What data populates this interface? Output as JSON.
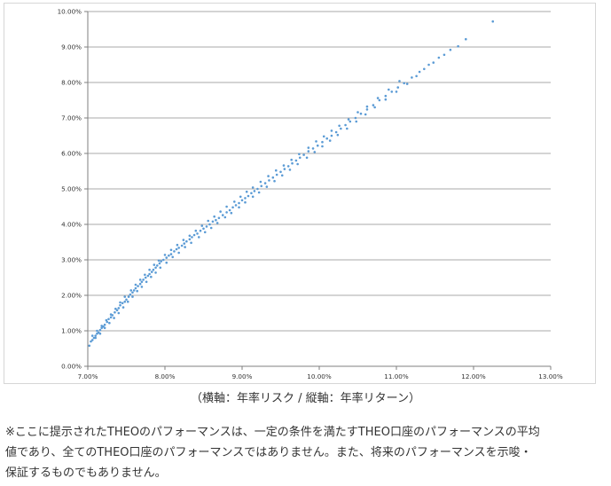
{
  "chart_data": {
    "type": "scatter",
    "x_tick_labels": [
      "7.00%",
      "8.00%",
      "9.00%",
      "10.00%",
      "11.00%",
      "12.00%",
      "13.00%"
    ],
    "y_tick_labels": [
      "0.00%",
      "1.00%",
      "2.00%",
      "3.00%",
      "4.00%",
      "5.00%",
      "6.00%",
      "7.00%",
      "8.00%",
      "9.00%",
      "10.00%"
    ],
    "xlim": [
      7,
      13
    ],
    "ylim": [
      0,
      10
    ],
    "x_unit": "%",
    "y_unit": "%",
    "grid": "horizontal",
    "point_color": "#5b9bd5",
    "points": [
      [
        7.02,
        0.58
      ],
      [
        7.04,
        0.7
      ],
      [
        7.06,
        0.74
      ],
      [
        7.08,
        0.8
      ],
      [
        7.1,
        0.86
      ],
      [
        7.12,
        0.92
      ],
      [
        7.14,
        0.95
      ],
      [
        7.16,
        1.02
      ],
      [
        7.18,
        1.08
      ],
      [
        7.2,
        1.12
      ],
      [
        7.22,
        1.17
      ],
      [
        7.25,
        1.25
      ],
      [
        7.27,
        1.33
      ],
      [
        7.3,
        1.38
      ],
      [
        7.32,
        1.44
      ],
      [
        7.35,
        1.52
      ],
      [
        7.38,
        1.58
      ],
      [
        7.4,
        1.64
      ],
      [
        7.42,
        1.72
      ],
      [
        7.45,
        1.78
      ],
      [
        7.48,
        1.82
      ],
      [
        7.5,
        1.88
      ],
      [
        7.53,
        1.96
      ],
      [
        7.55,
        2.02
      ],
      [
        7.58,
        2.08
      ],
      [
        7.6,
        2.14
      ],
      [
        7.62,
        2.2
      ],
      [
        7.65,
        2.26
      ],
      [
        7.68,
        2.32
      ],
      [
        7.7,
        2.38
      ],
      [
        7.72,
        2.44
      ],
      [
        7.75,
        2.5
      ],
      [
        7.78,
        2.55
      ],
      [
        7.8,
        2.6
      ],
      [
        7.83,
        2.66
      ],
      [
        7.85,
        2.72
      ],
      [
        7.88,
        2.78
      ],
      [
        7.9,
        2.84
      ],
      [
        7.93,
        2.9
      ],
      [
        7.95,
        2.96
      ],
      [
        7.98,
        3.0
      ],
      [
        8.02,
        3.06
      ],
      [
        8.05,
        3.12
      ],
      [
        8.08,
        3.16
      ],
      [
        8.12,
        3.24
      ],
      [
        8.15,
        3.3
      ],
      [
        8.18,
        3.34
      ],
      [
        8.22,
        3.4
      ],
      [
        8.25,
        3.46
      ],
      [
        8.28,
        3.52
      ],
      [
        8.32,
        3.58
      ],
      [
        8.35,
        3.64
      ],
      [
        8.38,
        3.7
      ],
      [
        8.42,
        3.74
      ],
      [
        8.46,
        3.82
      ],
      [
        8.5,
        3.88
      ],
      [
        8.54,
        3.94
      ],
      [
        8.58,
        4.0
      ],
      [
        8.62,
        4.08
      ],
      [
        8.66,
        4.12
      ],
      [
        8.7,
        4.18
      ],
      [
        8.75,
        4.26
      ],
      [
        8.8,
        4.34
      ],
      [
        8.84,
        4.4
      ],
      [
        8.88,
        4.48
      ],
      [
        8.92,
        4.54
      ],
      [
        8.96,
        4.6
      ],
      [
        9.0,
        4.68
      ],
      [
        9.04,
        4.74
      ],
      [
        9.08,
        4.8
      ],
      [
        9.12,
        4.88
      ],
      [
        9.16,
        4.94
      ],
      [
        9.2,
        5.0
      ],
      [
        9.25,
        5.08
      ],
      [
        9.3,
        5.16
      ],
      [
        9.35,
        5.24
      ],
      [
        9.4,
        5.32
      ],
      [
        9.45,
        5.4
      ],
      [
        9.5,
        5.48
      ],
      [
        9.55,
        5.56
      ],
      [
        9.6,
        5.64
      ],
      [
        9.65,
        5.72
      ],
      [
        9.7,
        5.8
      ],
      [
        9.75,
        5.88
      ],
      [
        9.8,
        5.96
      ],
      [
        9.86,
        6.06
      ],
      [
        9.92,
        6.14
      ],
      [
        9.98,
        6.22
      ],
      [
        10.04,
        6.32
      ],
      [
        10.1,
        6.42
      ],
      [
        10.16,
        6.5
      ],
      [
        10.22,
        6.6
      ],
      [
        10.28,
        6.7
      ],
      [
        10.34,
        6.8
      ],
      [
        10.4,
        6.9
      ],
      [
        10.47,
        7.0
      ],
      [
        10.54,
        7.12
      ],
      [
        10.62,
        7.24
      ],
      [
        10.7,
        7.36
      ],
      [
        10.78,
        7.5
      ],
      [
        10.86,
        7.62
      ],
      [
        10.94,
        7.74
      ],
      [
        11.02,
        7.86
      ],
      [
        11.1,
        7.98
      ],
      [
        11.2,
        8.14
      ],
      [
        11.3,
        8.3
      ],
      [
        11.42,
        8.5
      ],
      [
        11.55,
        8.7
      ],
      [
        11.7,
        8.92
      ],
      [
        11.9,
        9.22
      ],
      [
        12.25,
        9.72
      ],
      [
        7.06,
        0.86
      ],
      [
        7.12,
        1.0
      ],
      [
        7.18,
        1.14
      ],
      [
        7.24,
        1.3
      ],
      [
        7.3,
        1.46
      ],
      [
        7.36,
        1.62
      ],
      [
        7.42,
        1.8
      ],
      [
        7.48,
        1.96
      ],
      [
        7.56,
        2.14
      ],
      [
        7.62,
        2.3
      ],
      [
        7.68,
        2.44
      ],
      [
        7.74,
        2.58
      ],
      [
        7.8,
        2.72
      ],
      [
        7.86,
        2.86
      ],
      [
        7.92,
        2.98
      ],
      [
        8.0,
        3.14
      ],
      [
        8.08,
        3.28
      ],
      [
        8.16,
        3.42
      ],
      [
        8.24,
        3.56
      ],
      [
        8.32,
        3.68
      ],
      [
        8.4,
        3.82
      ],
      [
        8.48,
        3.96
      ],
      [
        8.56,
        4.1
      ],
      [
        8.64,
        4.22
      ],
      [
        8.72,
        4.36
      ],
      [
        8.8,
        4.5
      ],
      [
        8.9,
        4.64
      ],
      [
        8.98,
        4.78
      ],
      [
        9.06,
        4.92
      ],
      [
        9.14,
        5.04
      ],
      [
        9.24,
        5.2
      ],
      [
        9.34,
        5.36
      ],
      [
        9.44,
        5.52
      ],
      [
        9.54,
        5.66
      ],
      [
        9.64,
        5.82
      ],
      [
        9.74,
        5.98
      ],
      [
        9.86,
        6.16
      ],
      [
        9.96,
        6.34
      ],
      [
        10.06,
        6.48
      ],
      [
        10.16,
        6.64
      ],
      [
        10.26,
        6.78
      ],
      [
        10.38,
        6.96
      ],
      [
        10.5,
        7.16
      ],
      [
        10.62,
        7.32
      ],
      [
        10.76,
        7.56
      ],
      [
        10.9,
        7.8
      ],
      [
        11.04,
        8.04
      ],
      [
        7.1,
        0.8
      ],
      [
        7.16,
        0.92
      ],
      [
        7.22,
        1.08
      ],
      [
        7.28,
        1.22
      ],
      [
        7.34,
        1.36
      ],
      [
        7.4,
        1.5
      ],
      [
        7.46,
        1.66
      ],
      [
        7.52,
        1.82
      ],
      [
        7.58,
        1.96
      ],
      [
        7.64,
        2.12
      ],
      [
        7.7,
        2.24
      ],
      [
        7.76,
        2.38
      ],
      [
        7.82,
        2.52
      ],
      [
        7.88,
        2.64
      ],
      [
        7.94,
        2.78
      ],
      [
        8.02,
        2.92
      ],
      [
        8.1,
        3.08
      ],
      [
        8.18,
        3.2
      ],
      [
        8.26,
        3.36
      ],
      [
        8.34,
        3.48
      ],
      [
        8.44,
        3.64
      ],
      [
        8.52,
        3.78
      ],
      [
        8.6,
        3.9
      ],
      [
        8.68,
        4.04
      ],
      [
        8.78,
        4.2
      ],
      [
        8.86,
        4.32
      ],
      [
        8.96,
        4.48
      ],
      [
        9.04,
        4.62
      ],
      [
        9.14,
        4.78
      ],
      [
        9.22,
        4.9
      ],
      [
        9.32,
        5.06
      ],
      [
        9.42,
        5.22
      ],
      [
        9.52,
        5.38
      ],
      [
        9.62,
        5.54
      ],
      [
        9.72,
        5.7
      ],
      [
        9.84,
        5.88
      ],
      [
        9.94,
        6.04
      ],
      [
        10.04,
        6.2
      ],
      [
        10.14,
        6.36
      ],
      [
        10.24,
        6.52
      ],
      [
        10.36,
        6.7
      ],
      [
        10.48,
        6.9
      ],
      [
        10.6,
        7.1
      ],
      [
        10.72,
        7.3
      ],
      [
        10.86,
        7.52
      ],
      [
        11.0,
        7.74
      ],
      [
        11.14,
        7.96
      ],
      [
        11.26,
        8.18
      ],
      [
        11.36,
        8.38
      ],
      [
        11.48,
        8.56
      ],
      [
        11.62,
        8.78
      ],
      [
        11.8,
        9.02
      ]
    ]
  },
  "caption": "（横軸：年率リスク / 縦軸：年率リターン）",
  "disclaimer": "※ここに提示されたTHEOのパフォーマンスは、一定の条件を満たすTHEO口座のパフォーマンスの平均\n値であり、全てのTHEO口座のパフォーマンスではありません。また、将来のパフォーマンスを示唆・\n保証するものでもありません。"
}
